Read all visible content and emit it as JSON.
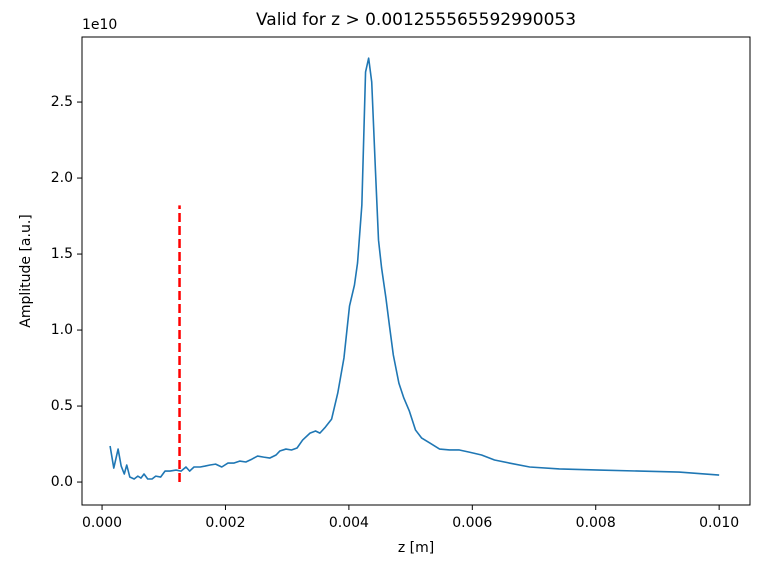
{
  "chart_data": {
    "type": "line",
    "title": "Valid for z > 0.001255565592990053",
    "xlabel": "z [m]",
    "ylabel": "Amplitude [a.u.]",
    "y_offset_label": "1e10",
    "xlim": [
      -0.000325,
      0.0105
    ],
    "ylim": [
      -0.151,
      2.928
    ],
    "xticks": [
      {
        "value": 0,
        "label": "0.000"
      },
      {
        "value": 0.002,
        "label": "0.002"
      },
      {
        "value": 0.004,
        "label": "0.004"
      },
      {
        "value": 0.006,
        "label": "0.006"
      },
      {
        "value": 0.008,
        "label": "0.008"
      },
      {
        "value": 0.01,
        "label": "0.010"
      }
    ],
    "yticks": [
      {
        "value": 0,
        "label": "0.0"
      },
      {
        "value": 0.5,
        "label": "0.5"
      },
      {
        "value": 1,
        "label": "1.0"
      },
      {
        "value": 1.5,
        "label": "1.5"
      },
      {
        "value": 2,
        "label": "2.0"
      },
      {
        "value": 2.5,
        "label": "2.5"
      }
    ],
    "grid": false,
    "vline": {
      "x": 0.001255565592990053,
      "ymin": 0,
      "ymax": 1.82,
      "color": "#ff0000"
    },
    "series": [
      {
        "color": "#1f77b4",
        "x": [
          0.00013,
          0.00019,
          0.00026,
          0.00031,
          0.00036,
          0.0004,
          0.00045,
          0.00052,
          0.00058,
          0.00063,
          0.00068,
          0.00074,
          0.00081,
          0.00087,
          0.00095,
          0.00102,
          0.0011,
          0.0012,
          0.00128,
          0.00136,
          0.00142,
          0.00149,
          0.00159,
          0.00167,
          0.00175,
          0.00184,
          0.00194,
          0.00204,
          0.00214,
          0.00223,
          0.00233,
          0.00243,
          0.00252,
          0.00262,
          0.00272,
          0.00282,
          0.00288,
          0.00298,
          0.00307,
          0.00316,
          0.00325,
          0.00337,
          0.00346,
          0.00353,
          0.00362,
          0.00372,
          0.00382,
          0.00392,
          0.00401,
          0.00409,
          0.00414,
          0.00421,
          0.00427,
          0.00432,
          0.00437,
          0.00443,
          0.00448,
          0.00453,
          0.0046,
          0.00466,
          0.00472,
          0.00481,
          0.00489,
          0.00498,
          0.00508,
          0.00518,
          0.00531,
          0.00547,
          0.00563,
          0.00579,
          0.00595,
          0.00615,
          0.00636,
          0.0066,
          0.00693,
          0.00741,
          0.00806,
          0.00871,
          0.00935,
          0.01
        ],
        "values": [
          0.237,
          0.092,
          0.217,
          0.105,
          0.053,
          0.112,
          0.033,
          0.02,
          0.039,
          0.026,
          0.053,
          0.02,
          0.02,
          0.039,
          0.033,
          0.072,
          0.072,
          0.079,
          0.072,
          0.099,
          0.072,
          0.099,
          0.099,
          0.105,
          0.112,
          0.118,
          0.099,
          0.125,
          0.125,
          0.138,
          0.132,
          0.151,
          0.171,
          0.164,
          0.158,
          0.178,
          0.204,
          0.217,
          0.211,
          0.224,
          0.276,
          0.322,
          0.336,
          0.322,
          0.362,
          0.414,
          0.586,
          0.816,
          1.158,
          1.296,
          1.441,
          1.822,
          2.697,
          2.789,
          2.632,
          2.053,
          1.592,
          1.408,
          1.211,
          1.02,
          0.836,
          0.651,
          0.553,
          0.467,
          0.342,
          0.289,
          0.257,
          0.217,
          0.211,
          0.211,
          0.197,
          0.178,
          0.145,
          0.125,
          0.099,
          0.086,
          0.079,
          0.072,
          0.066,
          0.046
        ]
      }
    ]
  }
}
